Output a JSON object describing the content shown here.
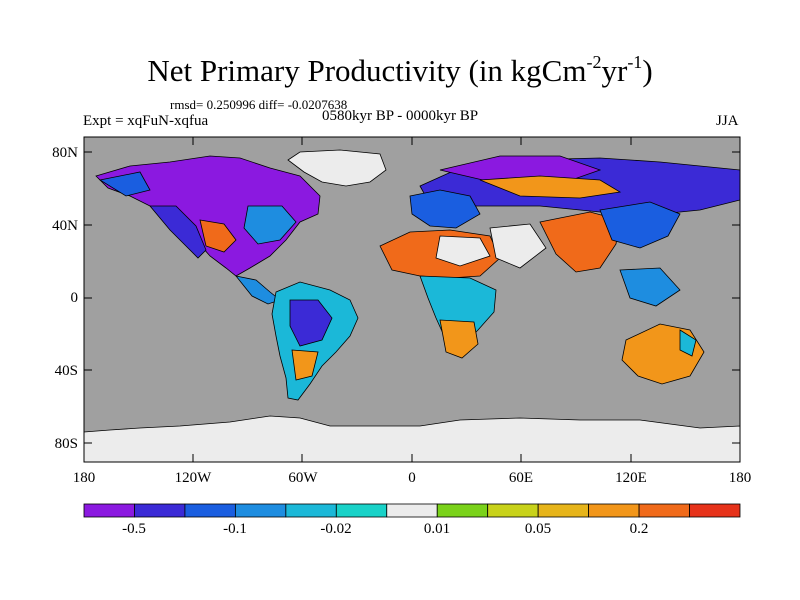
{
  "title": {
    "main": "Net Primary Productivity (in kgCm",
    "exp1": "-2",
    "mid": "yr",
    "exp2": "-1",
    "close": ")"
  },
  "stats": "rmsd= 0.250996 diff= -0.0207638",
  "experiment": "Expt = xqFuN-xqfua",
  "period": "0580kyr BP - 0000kyr BP",
  "season": "JJA",
  "lat_labels": [
    "80N",
    "40N",
    "0",
    "40S",
    "80S"
  ],
  "lon_labels": [
    "180",
    "120W",
    "60W",
    "0",
    "60E",
    "120E",
    "180"
  ],
  "colorbar": {
    "colors": [
      "#8b19e0",
      "#3b2ad6",
      "#1a5ee0",
      "#1e8de0",
      "#1bb8d8",
      "#19d2c8",
      "#ececec",
      "#7ad21a",
      "#c8d21a",
      "#e6b41a",
      "#f2961a",
      "#f06a1a",
      "#e6321a"
    ],
    "labels": [
      "-0.5",
      "-0.1",
      "-0.02",
      "0.01",
      "0.05",
      "0.2"
    ]
  },
  "colors": {
    "ocean": "#a0a0a0",
    "ice": "#ececec",
    "frame": "#000000"
  }
}
